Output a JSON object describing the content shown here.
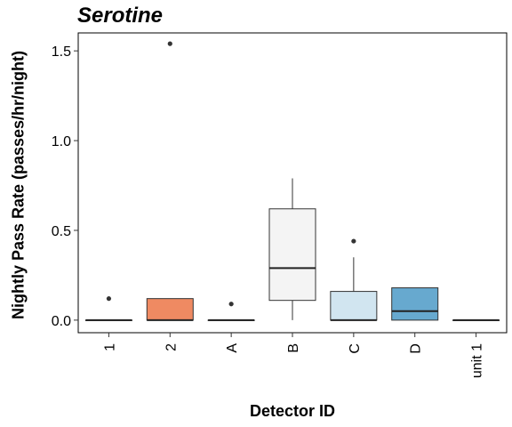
{
  "chart_data": {
    "type": "boxplot",
    "title": "Serotine",
    "xlabel": "Detector ID",
    "ylabel": "Nightly Pass Rate (passes/hr/night)",
    "ylim": [
      -0.07,
      1.6
    ],
    "yticks": [
      0.0,
      0.5,
      1.0,
      1.5
    ],
    "ytick_labels": [
      "0.0",
      "0.5",
      "1.0",
      "1.5"
    ],
    "categories": [
      "1",
      "2",
      "A",
      "B",
      "C",
      "D",
      "unit 1"
    ],
    "boxes": [
      {
        "category": "1",
        "min": 0.0,
        "q1": 0.0,
        "median": 0.0,
        "q3": 0.0,
        "max": 0.0,
        "outliers": [
          0.12
        ],
        "color": "#F4F4F4"
      },
      {
        "category": "2",
        "min": 0.0,
        "q1": 0.0,
        "median": 0.0,
        "q3": 0.12,
        "max": 0.12,
        "outliers": [
          1.54
        ],
        "color": "#EF8A62"
      },
      {
        "category": "A",
        "min": 0.0,
        "q1": 0.0,
        "median": 0.0,
        "q3": 0.0,
        "max": 0.0,
        "outliers": [
          0.09
        ],
        "color": "#F4F4F4"
      },
      {
        "category": "B",
        "min": 0.0,
        "q1": 0.11,
        "median": 0.29,
        "q3": 0.62,
        "max": 0.79,
        "outliers": [],
        "color": "#F4F4F4"
      },
      {
        "category": "C",
        "min": 0.0,
        "q1": 0.0,
        "median": 0.0,
        "q3": 0.16,
        "max": 0.35,
        "outliers": [
          0.44
        ],
        "color": "#D1E5F0"
      },
      {
        "category": "D",
        "min": 0.0,
        "q1": 0.0,
        "median": 0.05,
        "q3": 0.18,
        "max": 0.18,
        "outliers": [],
        "color": "#67A9CF"
      },
      {
        "category": "unit 1",
        "min": 0.0,
        "q1": 0.0,
        "median": 0.0,
        "q3": 0.0,
        "max": 0.0,
        "outliers": [],
        "color": "#F4F4F4"
      }
    ],
    "grid": false,
    "legend": "none"
  }
}
